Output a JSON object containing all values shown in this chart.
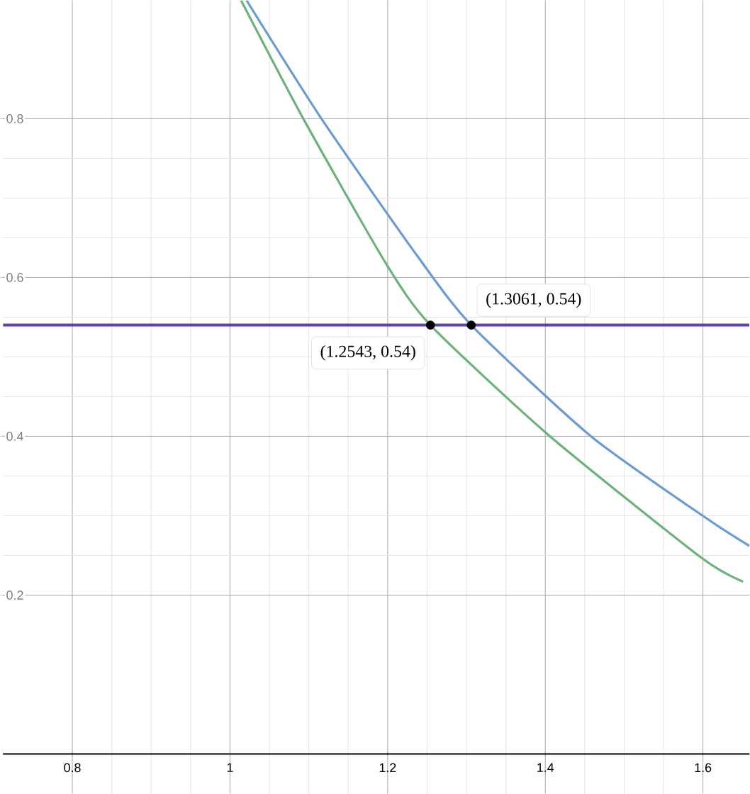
{
  "chart_data": {
    "type": "line",
    "xlim": [
      0.712,
      1.659
    ],
    "ylim": [
      -0.05,
      0.949
    ],
    "xticks": [
      0.8,
      1,
      1.2,
      1.4,
      1.6
    ],
    "yticks": [
      0.2,
      0.4,
      0.6,
      0.8
    ],
    "grid": true,
    "marker": "none",
    "line_style": "solid",
    "series": [
      {
        "color": "#6b9bd1",
        "x": [
          1.021,
          1.116,
          1.237,
          1.3061,
          1.458,
          1.607,
          1.659
        ],
        "values": [
          0.949,
          0.8,
          0.628,
          0.54,
          0.4,
          0.295,
          0.262
        ]
      },
      {
        "color": "#6db27c",
        "x": [
          1.014,
          1.093,
          1.197,
          1.2543,
          1.406,
          1.598,
          1.651
        ],
        "values": [
          0.949,
          0.8,
          0.619,
          0.54,
          0.4,
          0.247,
          0.217
        ]
      },
      {
        "type": "scatter",
        "color": "#000000",
        "marker": "circle",
        "x": [
          1.2543,
          1.3061
        ],
        "values": [
          0.54,
          0.54
        ]
      }
    ],
    "ref_lines": [
      {
        "axis": "y",
        "value": 0.54,
        "color": "#6042a6"
      }
    ],
    "annotations": [
      {
        "text": "(1.3061, 0.54)",
        "x": 1.3061,
        "y": 0.54
      },
      {
        "text": "(1.2543, 0.54)",
        "x": 1.2543,
        "y": 0.54
      }
    ]
  }
}
